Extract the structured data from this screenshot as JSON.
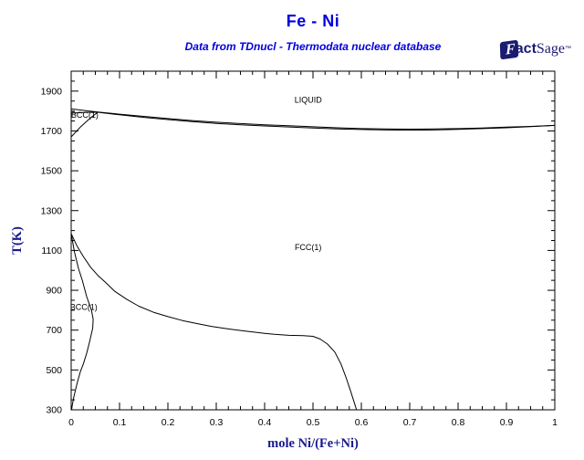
{
  "header": {
    "title": "Fe - Ni",
    "subtitle": "Data from TDnucl - Thermodata nuclear database",
    "title_color": "#0000dd",
    "logo": {
      "f": "F",
      "act": "act",
      "sage": "Sage",
      "tm": "™",
      "color": "#1b1b70"
    }
  },
  "chart_data": {
    "type": "line",
    "title": "Fe - Ni",
    "subtitle": "Data from TDnucl - Thermodata nuclear database",
    "xlabel": "mole Ni/(Fe+Ni)",
    "ylabel": "T(K)",
    "xlim": [
      0,
      1
    ],
    "ylim": [
      300,
      2000
    ],
    "grid": false,
    "frame": "box-with-inward-ticks",
    "line_color": "#000000",
    "axis_title_color": "#19198c",
    "tick_label_color": "#000000",
    "x_major_ticks": [
      0,
      0.1,
      0.2,
      0.3,
      0.4,
      0.5,
      0.6,
      0.7,
      0.8,
      0.9,
      1
    ],
    "x_tick_labels": [
      "0",
      "0.1",
      "0.2",
      "0.3",
      "0.4",
      "0.5",
      "0.6",
      "0.7",
      "0.8",
      "0.9",
      "1"
    ],
    "x_minor_step": 0.025,
    "y_major_ticks": [
      300,
      500,
      700,
      900,
      1100,
      1300,
      1500,
      1700,
      1900
    ],
    "y_tick_labels": [
      "300",
      "500",
      "700",
      "900",
      "1100",
      "1300",
      "1500",
      "1700",
      "1900"
    ],
    "y_minor_step": 50,
    "phase_labels": [
      {
        "text": "LIQUID",
        "x": 0.49,
        "T": 1855
      },
      {
        "text": "FCC(1)",
        "x": 0.49,
        "T": 1116
      },
      {
        "text": "BCC(1)",
        "x": 0.028,
        "T": 1780
      },
      {
        "text": "BCC(1)",
        "x": 0.026,
        "T": 816
      }
    ],
    "series": [
      {
        "name": "liquidus",
        "points": [
          [
            0,
            1811
          ],
          [
            0.03,
            1802
          ],
          [
            0.06,
            1794
          ],
          [
            0.1,
            1784
          ],
          [
            0.15,
            1773
          ],
          [
            0.2,
            1762
          ],
          [
            0.25,
            1752
          ],
          [
            0.3,
            1744
          ],
          [
            0.35,
            1737
          ],
          [
            0.4,
            1731
          ],
          [
            0.45,
            1726
          ],
          [
            0.5,
            1721
          ],
          [
            0.55,
            1716
          ],
          [
            0.6,
            1712
          ],
          [
            0.65,
            1710
          ],
          [
            0.7,
            1709
          ],
          [
            0.75,
            1710
          ],
          [
            0.8,
            1712
          ],
          [
            0.85,
            1715
          ],
          [
            0.9,
            1719
          ],
          [
            0.95,
            1723
          ],
          [
            1,
            1728
          ]
        ]
      },
      {
        "name": "solidus",
        "points": [
          [
            0.055,
            1794
          ],
          [
            0.1,
            1781
          ],
          [
            0.15,
            1768
          ],
          [
            0.2,
            1757
          ],
          [
            0.25,
            1747
          ],
          [
            0.3,
            1738
          ],
          [
            0.35,
            1731
          ],
          [
            0.4,
            1725
          ],
          [
            0.45,
            1720
          ],
          [
            0.5,
            1715
          ],
          [
            0.55,
            1710
          ],
          [
            0.6,
            1707
          ],
          [
            0.65,
            1705
          ],
          [
            0.7,
            1704
          ],
          [
            0.75,
            1705
          ],
          [
            0.8,
            1708
          ],
          [
            0.85,
            1712
          ],
          [
            0.9,
            1716
          ],
          [
            0.95,
            1722
          ],
          [
            1,
            1728
          ]
        ]
      },
      {
        "name": "delta-bcc-solidus",
        "points": [
          [
            0,
            1789
          ],
          [
            0.02,
            1792
          ],
          [
            0.04,
            1794
          ],
          [
            0.055,
            1794
          ]
        ]
      },
      {
        "name": "delta-bcc-fcc-boundary",
        "points": [
          [
            0,
            1670
          ],
          [
            0.02,
            1722
          ],
          [
            0.04,
            1766
          ],
          [
            0.055,
            1794
          ]
        ]
      },
      {
        "name": "fcc-bcc-boundary",
        "points": [
          [
            0,
            1185
          ],
          [
            0.012,
            1122
          ],
          [
            0.025,
            1070
          ],
          [
            0.04,
            1016
          ],
          [
            0.055,
            975
          ],
          [
            0.07,
            942
          ],
          [
            0.09,
            895
          ],
          [
            0.115,
            855
          ],
          [
            0.14,
            820
          ],
          [
            0.17,
            790
          ],
          [
            0.2,
            768
          ],
          [
            0.23,
            748
          ],
          [
            0.26,
            733
          ],
          [
            0.29,
            719
          ],
          [
            0.32,
            708
          ],
          [
            0.36,
            695
          ],
          [
            0.4,
            684
          ],
          [
            0.42,
            679
          ],
          [
            0.45,
            674
          ],
          [
            0.48,
            672
          ],
          [
            0.5,
            669
          ],
          [
            0.515,
            655
          ],
          [
            0.53,
            630
          ],
          [
            0.545,
            590
          ],
          [
            0.558,
            530
          ],
          [
            0.568,
            465
          ],
          [
            0.577,
            400
          ],
          [
            0.585,
            340
          ],
          [
            0.59,
            300
          ]
        ]
      },
      {
        "name": "bcc-solvus",
        "points": [
          [
            0,
            1185
          ],
          [
            0.007,
            1090
          ],
          [
            0.015,
            1010
          ],
          [
            0.023,
            950
          ],
          [
            0.032,
            868
          ],
          [
            0.042,
            799
          ],
          [
            0.0455,
            754
          ],
          [
            0.0445,
            710
          ],
          [
            0.043,
            694
          ],
          [
            0.038,
            640
          ],
          [
            0.032,
            584
          ],
          [
            0.025,
            530
          ],
          [
            0.019,
            492
          ],
          [
            0.013,
            440
          ],
          [
            0.009,
            401
          ],
          [
            0.005,
            360
          ],
          [
            0.002,
            320
          ],
          [
            0.001,
            300
          ]
        ]
      }
    ]
  }
}
